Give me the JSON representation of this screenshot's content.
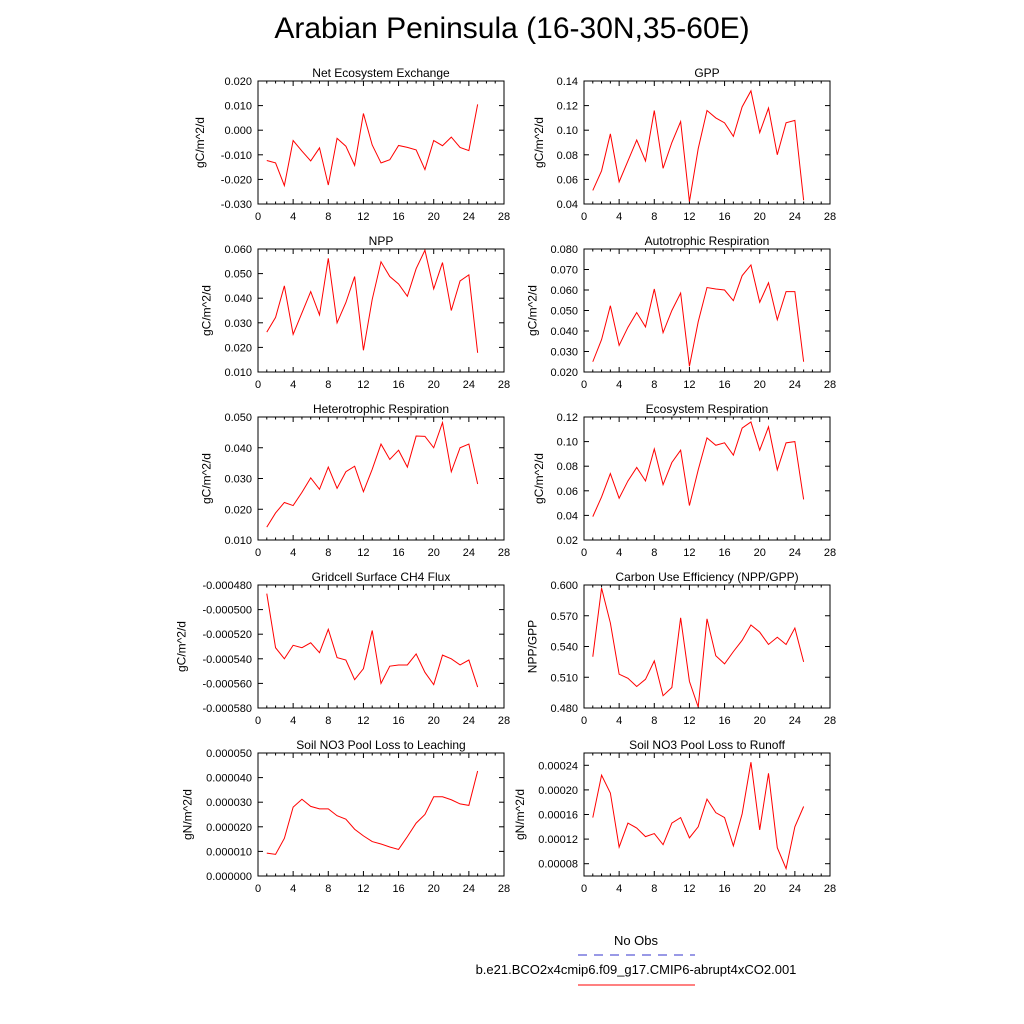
{
  "page_title": "Arabian Peninsula (16-30N,35-60E)",
  "colors": {
    "model_line": "#ff0000",
    "obs_line": "#3333cc",
    "axis": "#000000"
  },
  "legend": {
    "obs_label": "No Obs",
    "model_label": "b.e21.BCO2x4cmip6.f09_g17.CMIP6-abrupt4xCO2.001"
  },
  "chart_data": [
    {
      "type": "line",
      "title": "Net Ecosystem Exchange",
      "ylabel": "gC/m^2/d",
      "xlim": [
        0,
        28
      ],
      "xticks": [
        0,
        4,
        8,
        12,
        16,
        20,
        24,
        28
      ],
      "ylim": [
        -0.03,
        0.02
      ],
      "yticks": [
        -0.03,
        -0.02,
        -0.01,
        0.0,
        0.01,
        0.02
      ],
      "yticklabels": [
        "-0.030",
        "-0.020",
        "-0.010",
        "0.000",
        "0.010",
        "0.020"
      ],
      "x": [
        1,
        2,
        3,
        4,
        5,
        6,
        7,
        8,
        9,
        10,
        11,
        12,
        13,
        14,
        15,
        16,
        17,
        18,
        19,
        20,
        21,
        22,
        23,
        24,
        25
      ],
      "y": [
        -0.0123,
        -0.0133,
        -0.0225,
        -0.0042,
        -0.0085,
        -0.0125,
        -0.0072,
        -0.0223,
        -0.0033,
        -0.0065,
        -0.0143,
        0.0068,
        -0.006,
        -0.0133,
        -0.012,
        -0.0062,
        -0.007,
        -0.008,
        -0.016,
        -0.0042,
        -0.0063,
        -0.0028,
        -0.007,
        -0.0083,
        0.0105
      ]
    },
    {
      "type": "line",
      "title": "GPP",
      "ylabel": "gC/m^2/d",
      "xlim": [
        0,
        28
      ],
      "xticks": [
        0,
        4,
        8,
        12,
        16,
        20,
        24,
        28
      ],
      "ylim": [
        0.04,
        0.14
      ],
      "yticks": [
        0.04,
        0.06,
        0.08,
        0.1,
        0.12,
        0.14
      ],
      "yticklabels": [
        "0.04",
        "0.06",
        "0.08",
        "0.10",
        "0.12",
        "0.14"
      ],
      "x": [
        1,
        2,
        3,
        4,
        5,
        6,
        7,
        8,
        9,
        10,
        11,
        12,
        13,
        14,
        15,
        16,
        17,
        18,
        19,
        20,
        21,
        22,
        23,
        24,
        25
      ],
      "y": [
        0.051,
        0.067,
        0.097,
        0.058,
        0.075,
        0.092,
        0.075,
        0.116,
        0.069,
        0.09,
        0.107,
        0.042,
        0.085,
        0.116,
        0.11,
        0.106,
        0.095,
        0.119,
        0.132,
        0.098,
        0.118,
        0.08,
        0.106,
        0.108,
        0.043
      ]
    },
    {
      "type": "line",
      "title": "NPP",
      "ylabel": "gC/m^2/d",
      "xlim": [
        0,
        28
      ],
      "xticks": [
        0,
        4,
        8,
        12,
        16,
        20,
        24,
        28
      ],
      "ylim": [
        0.01,
        0.06
      ],
      "yticks": [
        0.01,
        0.02,
        0.03,
        0.04,
        0.05,
        0.06
      ],
      "yticklabels": [
        "0.010",
        "0.020",
        "0.030",
        "0.040",
        "0.050",
        "0.060"
      ],
      "x": [
        1,
        2,
        3,
        4,
        5,
        6,
        7,
        8,
        9,
        10,
        11,
        12,
        13,
        14,
        15,
        16,
        17,
        18,
        19,
        20,
        21,
        22,
        23,
        24,
        25
      ],
      "y": [
        0.0262,
        0.0322,
        0.045,
        0.0253,
        0.034,
        0.0427,
        0.0332,
        0.0562,
        0.03,
        0.0382,
        0.0488,
        0.0188,
        0.0395,
        0.0548,
        0.0488,
        0.0458,
        0.0408,
        0.052,
        0.0595,
        0.0438,
        0.0545,
        0.035,
        0.047,
        0.0495,
        0.0178
      ]
    },
    {
      "type": "line",
      "title": "Autotrophic Respiration",
      "ylabel": "gC/m^2/d",
      "xlim": [
        0,
        28
      ],
      "xticks": [
        0,
        4,
        8,
        12,
        16,
        20,
        24,
        28
      ],
      "ylim": [
        0.02,
        0.08
      ],
      "yticks": [
        0.02,
        0.03,
        0.04,
        0.05,
        0.06,
        0.07,
        0.08
      ],
      "yticklabels": [
        "0.020",
        "0.030",
        "0.040",
        "0.050",
        "0.060",
        "0.070",
        "0.080"
      ],
      "x": [
        1,
        2,
        3,
        4,
        5,
        6,
        7,
        8,
        9,
        10,
        11,
        12,
        13,
        14,
        15,
        16,
        17,
        18,
        19,
        20,
        21,
        22,
        23,
        24,
        25
      ],
      "y": [
        0.025,
        0.0358,
        0.0523,
        0.033,
        0.0418,
        0.049,
        0.042,
        0.0605,
        0.0392,
        0.05,
        0.0585,
        0.0228,
        0.0445,
        0.0612,
        0.0605,
        0.06,
        0.0548,
        0.067,
        0.0722,
        0.054,
        0.0635,
        0.0455,
        0.0592,
        0.0592,
        0.025
      ]
    },
    {
      "type": "line",
      "title": "Heterotrophic Respiration",
      "ylabel": "gC/m^2/d",
      "xlim": [
        0,
        28
      ],
      "xticks": [
        0,
        4,
        8,
        12,
        16,
        20,
        24,
        28
      ],
      "ylim": [
        0.01,
        0.05
      ],
      "yticks": [
        0.01,
        0.02,
        0.03,
        0.04,
        0.05
      ],
      "yticklabels": [
        "0.010",
        "0.020",
        "0.030",
        "0.040",
        "0.050"
      ],
      "x": [
        1,
        2,
        3,
        4,
        5,
        6,
        7,
        8,
        9,
        10,
        11,
        12,
        13,
        14,
        15,
        16,
        17,
        18,
        19,
        20,
        21,
        22,
        23,
        24,
        25
      ],
      "y": [
        0.0142,
        0.0188,
        0.0222,
        0.0212,
        0.0255,
        0.0302,
        0.0265,
        0.0337,
        0.0268,
        0.0322,
        0.034,
        0.0257,
        0.033,
        0.0412,
        0.0362,
        0.0392,
        0.0337,
        0.0438,
        0.0437,
        0.04,
        0.0482,
        0.0322,
        0.04,
        0.0412,
        0.0282
      ]
    },
    {
      "type": "line",
      "title": "Ecosystem Respiration",
      "ylabel": "gC/m^2/d",
      "xlim": [
        0,
        28
      ],
      "xticks": [
        0,
        4,
        8,
        12,
        16,
        20,
        24,
        28
      ],
      "ylim": [
        0.02,
        0.12
      ],
      "yticks": [
        0.02,
        0.04,
        0.06,
        0.08,
        0.1,
        0.12
      ],
      "yticklabels": [
        "0.02",
        "0.04",
        "0.06",
        "0.08",
        "0.10",
        "0.12"
      ],
      "x": [
        1,
        2,
        3,
        4,
        5,
        6,
        7,
        8,
        9,
        10,
        11,
        12,
        13,
        14,
        15,
        16,
        17,
        18,
        19,
        20,
        21,
        22,
        23,
        24,
        25
      ],
      "y": [
        0.039,
        0.055,
        0.074,
        0.054,
        0.068,
        0.079,
        0.068,
        0.094,
        0.065,
        0.083,
        0.093,
        0.048,
        0.077,
        0.103,
        0.097,
        0.099,
        0.089,
        0.111,
        0.116,
        0.093,
        0.112,
        0.077,
        0.099,
        0.1,
        0.053
      ]
    },
    {
      "type": "line",
      "title": "Gridcell Surface CH4 Flux",
      "ylabel": "gC/m^2/d",
      "xlim": [
        0,
        28
      ],
      "xticks": [
        0,
        4,
        8,
        12,
        16,
        20,
        24,
        28
      ],
      "ylim": [
        -0.00058,
        -0.00048
      ],
      "yticks": [
        -0.00058,
        -0.00056,
        -0.00054,
        -0.00052,
        -0.0005,
        -0.00048
      ],
      "yticklabels": [
        "-0.000580",
        "-0.000560",
        "-0.000540",
        "-0.000520",
        "-0.000500",
        "-0.000480"
      ],
      "x": [
        1,
        2,
        3,
        4,
        5,
        6,
        7,
        8,
        9,
        10,
        11,
        12,
        13,
        14,
        15,
        16,
        17,
        18,
        19,
        20,
        21,
        22,
        23,
        24,
        25
      ],
      "y": [
        -0.000487,
        -0.000531,
        -0.00054,
        -0.000529,
        -0.000531,
        -0.000527,
        -0.000535,
        -0.000516,
        -0.000539,
        -0.000541,
        -0.000557,
        -0.000548,
        -0.000517,
        -0.00056,
        -0.000546,
        -0.000545,
        -0.000545,
        -0.000536,
        -0.000551,
        -0.000561,
        -0.000537,
        -0.00054,
        -0.000545,
        -0.000541,
        -0.000563
      ]
    },
    {
      "type": "line",
      "title": "Carbon Use Efficiency (NPP/GPP)",
      "ylabel": "NPP/GPP",
      "xlim": [
        0,
        28
      ],
      "xticks": [
        0,
        4,
        8,
        12,
        16,
        20,
        24,
        28
      ],
      "ylim": [
        0.48,
        0.6
      ],
      "yticks": [
        0.48,
        0.51,
        0.54,
        0.57,
        0.6
      ],
      "yticklabels": [
        "0.480",
        "0.510",
        "0.540",
        "0.570",
        "0.600"
      ],
      "x": [
        1,
        2,
        3,
        4,
        5,
        6,
        7,
        8,
        9,
        10,
        11,
        12,
        13,
        14,
        15,
        16,
        17,
        18,
        19,
        20,
        21,
        22,
        23,
        24,
        25
      ],
      "y": [
        0.53,
        0.597,
        0.563,
        0.513,
        0.509,
        0.501,
        0.508,
        0.526,
        0.492,
        0.5,
        0.568,
        0.506,
        0.481,
        0.567,
        0.531,
        0.523,
        0.535,
        0.546,
        0.561,
        0.554,
        0.542,
        0.549,
        0.542,
        0.558,
        0.525
      ]
    },
    {
      "type": "line",
      "title": "Soil NO3 Pool Loss to Leaching",
      "ylabel": "gN/m^2/d",
      "xlim": [
        0,
        28
      ],
      "xticks": [
        0,
        4,
        8,
        12,
        16,
        20,
        24,
        28
      ],
      "ylim": [
        0.0,
        5e-05
      ],
      "yticks": [
        0.0,
        1e-05,
        2e-05,
        3e-05,
        4e-05,
        5e-05
      ],
      "yticklabels": [
        "0.000000",
        "0.000010",
        "0.000020",
        "0.000030",
        "0.000040",
        "0.000050"
      ],
      "x": [
        1,
        2,
        3,
        4,
        5,
        6,
        7,
        8,
        9,
        10,
        11,
        12,
        13,
        14,
        15,
        16,
        17,
        18,
        19,
        20,
        21,
        22,
        23,
        24,
        25
      ],
      "y": [
        9.3e-06,
        8.8e-06,
        1.53e-05,
        2.8e-05,
        3.12e-05,
        2.83e-05,
        2.73e-05,
        2.73e-05,
        2.45e-05,
        2.31e-05,
        1.9e-05,
        1.63e-05,
        1.4e-05,
        1.3e-05,
        1.18e-05,
        1.08e-05,
        1.6e-05,
        2.15e-05,
        2.5e-05,
        3.22e-05,
        3.22e-05,
        3.1e-05,
        2.93e-05,
        2.87e-05,
        4.27e-05
      ]
    },
    {
      "type": "line",
      "title": "Soil NO3 Pool Loss to Runoff",
      "ylabel": "gN/m^2/d",
      "xlim": [
        0,
        28
      ],
      "xticks": [
        0,
        4,
        8,
        12,
        16,
        20,
        24,
        28
      ],
      "ylim": [
        6e-05,
        0.00026
      ],
      "yticks": [
        8e-05,
        0.00012,
        0.00016,
        0.0002,
        0.00024
      ],
      "yticklabels": [
        "0.00008",
        "0.00012",
        "0.00016",
        "0.00020",
        "0.00024"
      ],
      "x": [
        1,
        2,
        3,
        4,
        5,
        6,
        7,
        8,
        9,
        10,
        11,
        12,
        13,
        14,
        15,
        16,
        17,
        18,
        19,
        20,
        21,
        22,
        23,
        24,
        25
      ],
      "y": [
        0.000155,
        0.000224,
        0.000195,
        0.000107,
        0.000146,
        0.000138,
        0.000124,
        0.000129,
        0.000111,
        0.000146,
        0.000155,
        0.000122,
        0.00014,
        0.000185,
        0.000163,
        0.000155,
        0.000109,
        0.000161,
        0.000245,
        0.000135,
        0.000227,
        0.000106,
        7.2e-05,
        0.00014,
        0.000173
      ]
    }
  ]
}
